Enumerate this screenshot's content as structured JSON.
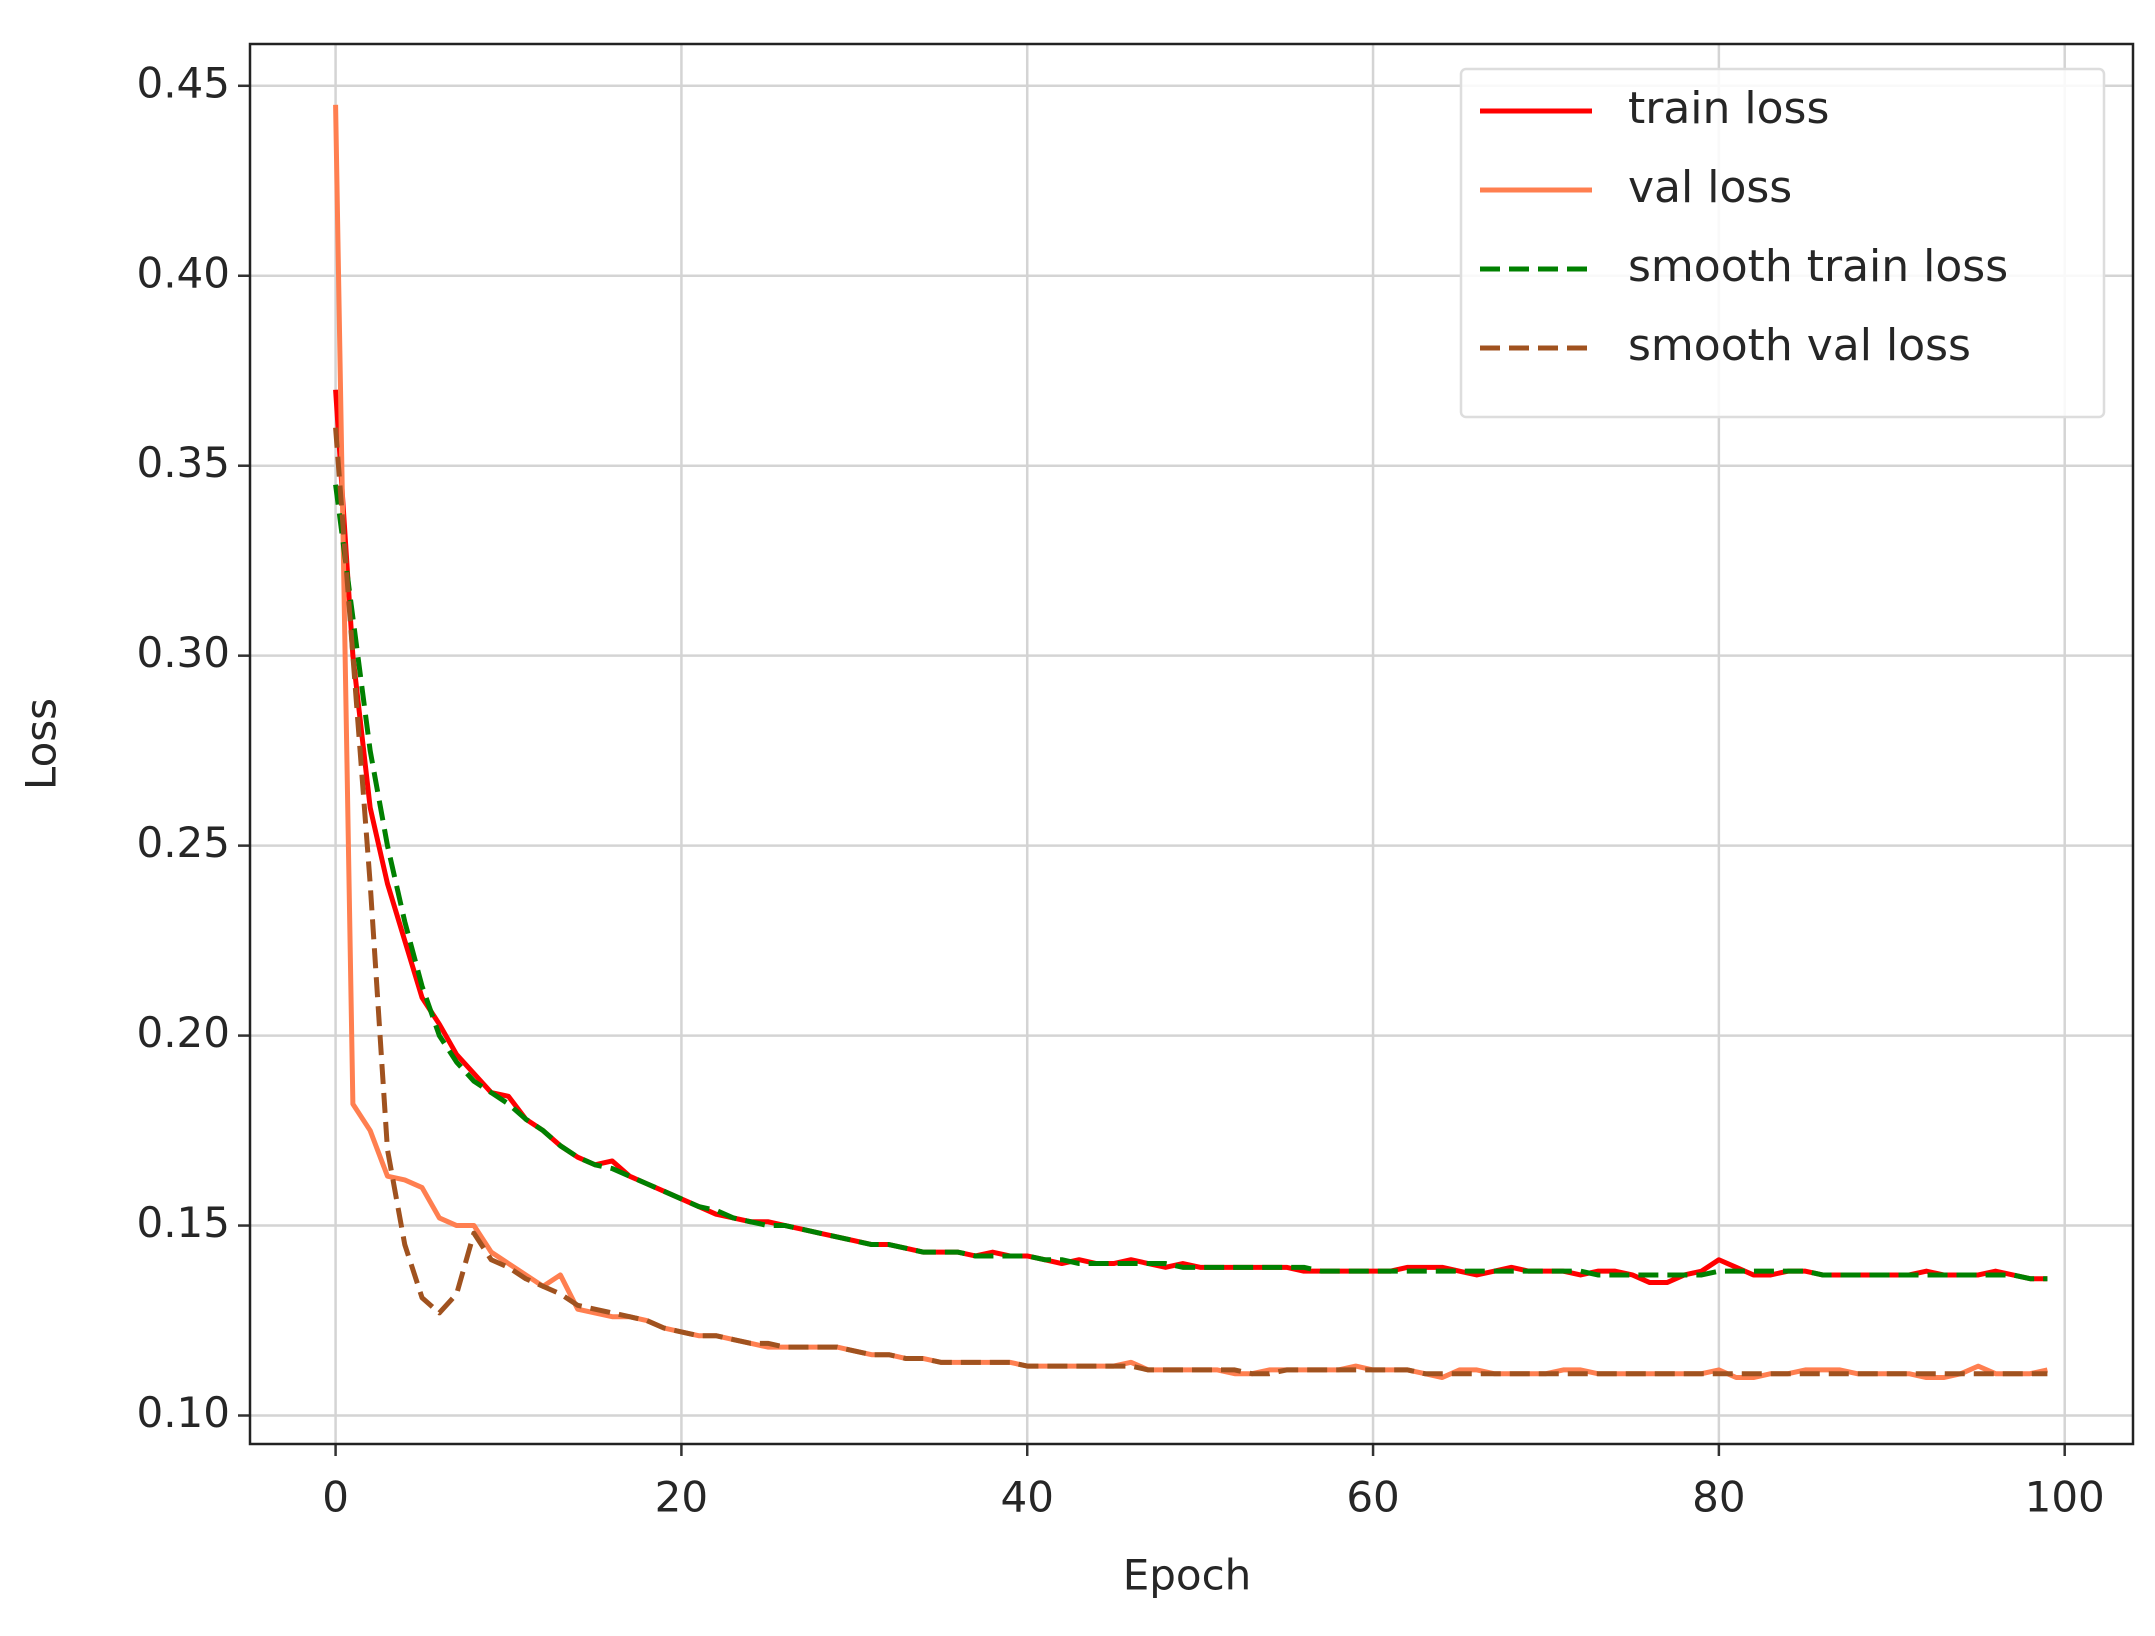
{
  "chart_data": {
    "type": "line",
    "xlabel": "Epoch",
    "ylabel": "Loss",
    "xlim": [
      -4.95,
      103.95
    ],
    "ylim": [
      0.0925,
      0.461
    ],
    "xticks": [
      0,
      20,
      40,
      60,
      80,
      100
    ],
    "yticks": [
      {
        "value": 0.1,
        "label": "0.10"
      },
      0.15,
      {
        "value": 0.2,
        "label": "0.20"
      },
      0.25,
      {
        "value": 0.3,
        "label": "0.30"
      },
      0.35,
      {
        "value": 0.4,
        "label": "0.40"
      },
      0.45
    ],
    "grid": true,
    "legend": "upper right",
    "x": [
      0,
      1,
      2,
      3,
      4,
      5,
      6,
      7,
      8,
      9,
      10,
      11,
      12,
      13,
      14,
      15,
      16,
      17,
      18,
      19,
      20,
      21,
      22,
      23,
      24,
      25,
      26,
      27,
      28,
      29,
      30,
      31,
      32,
      33,
      34,
      35,
      36,
      37,
      38,
      39,
      40,
      41,
      42,
      43,
      44,
      45,
      46,
      47,
      48,
      49,
      50,
      51,
      52,
      53,
      54,
      55,
      56,
      57,
      58,
      59,
      60,
      61,
      62,
      63,
      64,
      65,
      66,
      67,
      68,
      69,
      70,
      71,
      72,
      73,
      74,
      75,
      76,
      77,
      78,
      79,
      80,
      81,
      82,
      83,
      84,
      85,
      86,
      87,
      88,
      89,
      90,
      91,
      92,
      93,
      94,
      95,
      96,
      97,
      98,
      99
    ],
    "series": [
      {
        "name": "train loss",
        "color": "#ff0000",
        "dashed": false,
        "values": [
          0.37,
          0.3,
          0.26,
          0.24,
          0.225,
          0.21,
          0.203,
          0.195,
          0.19,
          0.185,
          0.184,
          0.178,
          0.175,
          0.171,
          0.168,
          0.166,
          0.167,
          0.163,
          0.161,
          0.159,
          0.157,
          0.155,
          0.153,
          0.152,
          0.151,
          0.151,
          0.15,
          0.149,
          0.148,
          0.147,
          0.146,
          0.145,
          0.145,
          0.144,
          0.143,
          0.143,
          0.143,
          0.142,
          0.143,
          0.142,
          0.142,
          0.141,
          0.14,
          0.141,
          0.14,
          0.14,
          0.141,
          0.14,
          0.139,
          0.14,
          0.139,
          0.139,
          0.139,
          0.139,
          0.139,
          0.139,
          0.138,
          0.138,
          0.138,
          0.138,
          0.138,
          0.138,
          0.139,
          0.139,
          0.139,
          0.138,
          0.137,
          0.138,
          0.139,
          0.138,
          0.138,
          0.138,
          0.137,
          0.138,
          0.138,
          0.137,
          0.135,
          0.135,
          0.137,
          0.138,
          0.141,
          0.139,
          0.137,
          0.137,
          0.138,
          0.138,
          0.137,
          0.137,
          0.137,
          0.137,
          0.137,
          0.137,
          0.138,
          0.137,
          0.137,
          0.137,
          0.138,
          0.137,
          0.136,
          0.136
        ]
      },
      {
        "name": "val loss",
        "color": "#ff7f50",
        "dashed": false,
        "values": [
          0.445,
          0.182,
          0.175,
          0.163,
          0.162,
          0.16,
          0.152,
          0.15,
          0.15,
          0.143,
          0.14,
          0.137,
          0.134,
          0.137,
          0.128,
          0.127,
          0.126,
          0.126,
          0.125,
          0.123,
          0.122,
          0.121,
          0.121,
          0.12,
          0.119,
          0.118,
          0.118,
          0.118,
          0.118,
          0.118,
          0.117,
          0.116,
          0.116,
          0.115,
          0.115,
          0.114,
          0.114,
          0.114,
          0.114,
          0.114,
          0.113,
          0.113,
          0.113,
          0.113,
          0.113,
          0.113,
          0.114,
          0.112,
          0.112,
          0.112,
          0.112,
          0.112,
          0.111,
          0.111,
          0.112,
          0.112,
          0.112,
          0.112,
          0.112,
          0.113,
          0.112,
          0.112,
          0.112,
          0.111,
          0.11,
          0.112,
          0.112,
          0.111,
          0.111,
          0.111,
          0.111,
          0.112,
          0.112,
          0.111,
          0.111,
          0.111,
          0.111,
          0.111,
          0.111,
          0.111,
          0.112,
          0.11,
          0.11,
          0.111,
          0.111,
          0.112,
          0.112,
          0.112,
          0.111,
          0.111,
          0.111,
          0.111,
          0.11,
          0.11,
          0.111,
          0.113,
          0.111,
          0.111,
          0.111,
          0.112
        ]
      },
      {
        "name": "smooth train loss",
        "color": "#008000",
        "dashed": true,
        "values": [
          0.345,
          0.31,
          0.275,
          0.25,
          0.23,
          0.213,
          0.2,
          0.193,
          0.188,
          0.185,
          0.182,
          0.178,
          0.175,
          0.171,
          0.168,
          0.166,
          0.165,
          0.163,
          0.161,
          0.159,
          0.157,
          0.155,
          0.154,
          0.152,
          0.151,
          0.15,
          0.15,
          0.149,
          0.148,
          0.147,
          0.146,
          0.145,
          0.145,
          0.144,
          0.143,
          0.143,
          0.143,
          0.142,
          0.142,
          0.142,
          0.142,
          0.141,
          0.141,
          0.14,
          0.14,
          0.14,
          0.14,
          0.14,
          0.14,
          0.139,
          0.139,
          0.139,
          0.139,
          0.139,
          0.139,
          0.139,
          0.139,
          0.138,
          0.138,
          0.138,
          0.138,
          0.138,
          0.138,
          0.138,
          0.138,
          0.138,
          0.138,
          0.138,
          0.138,
          0.138,
          0.138,
          0.138,
          0.138,
          0.137,
          0.137,
          0.137,
          0.137,
          0.137,
          0.137,
          0.137,
          0.138,
          0.138,
          0.138,
          0.138,
          0.138,
          0.138,
          0.137,
          0.137,
          0.137,
          0.137,
          0.137,
          0.137,
          0.137,
          0.137,
          0.137,
          0.137,
          0.137,
          0.137,
          0.136,
          0.136
        ]
      },
      {
        "name": "smooth val loss",
        "color": "#a0521f",
        "dashed": true,
        "values": [
          0.36,
          0.3,
          0.24,
          0.17,
          0.145,
          0.131,
          0.127,
          0.132,
          0.148,
          0.141,
          0.139,
          0.136,
          0.134,
          0.132,
          0.129,
          0.128,
          0.127,
          0.126,
          0.125,
          0.123,
          0.122,
          0.121,
          0.121,
          0.12,
          0.119,
          0.119,
          0.118,
          0.118,
          0.118,
          0.118,
          0.117,
          0.116,
          0.116,
          0.115,
          0.115,
          0.114,
          0.114,
          0.114,
          0.114,
          0.114,
          0.113,
          0.113,
          0.113,
          0.113,
          0.113,
          0.113,
          0.113,
          0.112,
          0.112,
          0.112,
          0.112,
          0.112,
          0.112,
          0.111,
          0.111,
          0.112,
          0.112,
          0.112,
          0.112,
          0.112,
          0.112,
          0.112,
          0.112,
          0.111,
          0.111,
          0.111,
          0.111,
          0.111,
          0.111,
          0.111,
          0.111,
          0.111,
          0.111,
          0.111,
          0.111,
          0.111,
          0.111,
          0.111,
          0.111,
          0.111,
          0.111,
          0.111,
          0.111,
          0.111,
          0.111,
          0.111,
          0.111,
          0.111,
          0.111,
          0.111,
          0.111,
          0.111,
          0.111,
          0.111,
          0.111,
          0.111,
          0.111,
          0.111,
          0.111,
          0.111
        ]
      }
    ]
  }
}
